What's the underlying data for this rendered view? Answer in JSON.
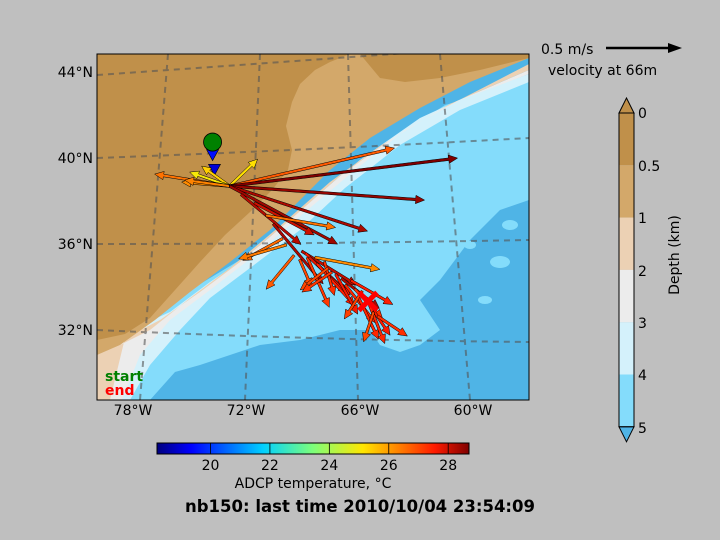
{
  "chart_data": {
    "type": "scatter",
    "subtype": "map-velocity-vectors",
    "title": "nb150: last time 2010/10/04 23:54:09",
    "map": {
      "x_ticks": [
        "78°W",
        "72°W",
        "66°W",
        "60°W"
      ],
      "x_tick_values": [
        -78,
        -72,
        -66,
        -60
      ],
      "y_ticks": [
        "44°N",
        "40°N",
        "36°N",
        "32°N"
      ],
      "y_tick_values": [
        44,
        40,
        36,
        32
      ],
      "lon_range": [
        -80,
        -57.2
      ],
      "lat_range": [
        28.5,
        45
      ],
      "grid": true,
      "start_label": "start",
      "end_label": "end",
      "start_color": "#008000",
      "end_color": "#ff0000",
      "start_point": [
        -73.9,
        40.8
      ],
      "end_point": [
        -65.7,
        33.2
      ]
    },
    "scale_arrow": {
      "label": "0.5 m/s",
      "sublabel": "velocity at 66m"
    },
    "depth_colorbar": {
      "label": "Depth (km)",
      "ticks": [
        "0",
        "0.5",
        "1",
        "2",
        "3",
        "4",
        "5"
      ],
      "colors": [
        "#c0904a",
        "#d3a86a",
        "#ecd1b4",
        "#ececec",
        "#d4f1fb",
        "#84dcfb",
        "#4fb4e6"
      ]
    },
    "temperature_colorbar": {
      "label": "ADCP temperature, °C",
      "ticks": [
        "20",
        "22",
        "24",
        "26",
        "28"
      ],
      "tick_values": [
        20,
        22,
        24,
        26,
        28
      ],
      "range": [
        18.2,
        28.7
      ]
    },
    "track_points": [
      {
        "lon": -73.9,
        "lat": 40.8,
        "temp": 20.0
      },
      {
        "lon": -73.9,
        "lat": 40.2,
        "temp": 19.5
      },
      {
        "lon": -73.8,
        "lat": 39.5,
        "temp": 19.0
      }
    ],
    "vectors": [
      {
        "lat": 38.7,
        "lon": -73.0,
        "dx": -28,
        "dy": -20,
        "temp": 25.4
      },
      {
        "lat": 38.7,
        "lon": -73.0,
        "dx": -40,
        "dy": -14,
        "temp": 25.0
      },
      {
        "lat": 38.7,
        "lon": -73.0,
        "dx": -48,
        "dy": -4,
        "temp": 26.2
      },
      {
        "lat": 38.7,
        "lon": -73.0,
        "dx": -75,
        "dy": -12,
        "temp": 26.5
      },
      {
        "lat": 38.7,
        "lon": -73.0,
        "dx": -45,
        "dy": -6,
        "temp": 26.3
      },
      {
        "lat": 38.7,
        "lon": -73.0,
        "dx": 28,
        "dy": -27,
        "temp": 25.2
      },
      {
        "lat": 38.7,
        "lon": -73.0,
        "dx": 165,
        "dy": -38,
        "temp": 26.8
      },
      {
        "lat": 38.7,
        "lon": -73.0,
        "dx": 228,
        "dy": -28,
        "temp": 28.7
      },
      {
        "lat": 38.7,
        "lon": -73.0,
        "dx": 195,
        "dy": 14,
        "temp": 28.5
      },
      {
        "lat": 38.7,
        "lon": -73.0,
        "dx": 138,
        "dy": 45,
        "temp": 28.3
      },
      {
        "lat": 38.7,
        "lon": -73.0,
        "dx": 108,
        "dy": 58,
        "temp": 28.4
      },
      {
        "lat": 38.3,
        "lon": -72.4,
        "dx": 60,
        "dy": 50,
        "temp": 28.2
      },
      {
        "lat": 37.9,
        "lon": -71.7,
        "dx": 60,
        "dy": 32,
        "temp": 28.0
      },
      {
        "lat": 37.3,
        "lon": -71.1,
        "dx": 70,
        "dy": 12,
        "temp": 26.5
      },
      {
        "lat": 36.9,
        "lon": -70.7,
        "dx": 50,
        "dy": 60,
        "temp": 28.3
      },
      {
        "lat": 36.2,
        "lon": -70.2,
        "dx": -40,
        "dy": 22,
        "temp": 26.6
      },
      {
        "lat": 35.9,
        "lon": -70.0,
        "dx": -48,
        "dy": 14,
        "temp": 26.4
      },
      {
        "lat": 35.4,
        "lon": -69.6,
        "dx": -28,
        "dy": 34,
        "temp": 26.8
      },
      {
        "lat": 35.2,
        "lon": -69.3,
        "dx": 12,
        "dy": 28,
        "temp": 27.0
      },
      {
        "lat": 35.6,
        "lon": -69.2,
        "dx": 55,
        "dy": 34,
        "temp": 28.1
      },
      {
        "lat": 35.5,
        "lon": -69.0,
        "dx": 45,
        "dy": 42,
        "temp": 27.6
      },
      {
        "lat": 35.3,
        "lon": -68.9,
        "dx": 22,
        "dy": 50,
        "temp": 27.2
      },
      {
        "lat": 35.3,
        "lon": -68.8,
        "dx": 38,
        "dy": 36,
        "temp": 27.8
      },
      {
        "lat": 35.0,
        "lon": -68.4,
        "dx": 38,
        "dy": 42,
        "temp": 27.5
      },
      {
        "lat": 35.3,
        "lon": -68.5,
        "dx": 65,
        "dy": 12,
        "temp": 26.2
      },
      {
        "lat": 35.1,
        "lon": -68.0,
        "dx": 10,
        "dy": 34,
        "temp": 27.3
      },
      {
        "lat": 34.8,
        "lon": -67.8,
        "dx": -28,
        "dy": 22,
        "temp": 27.0
      },
      {
        "lat": 34.6,
        "lon": -67.6,
        "dx": -30,
        "dy": 20,
        "temp": 27.2
      },
      {
        "lat": 34.5,
        "lon": -67.4,
        "dx": 22,
        "dy": 40,
        "temp": 27.6
      },
      {
        "lat": 34.3,
        "lon": -67.1,
        "dx": 38,
        "dy": 30,
        "temp": 28.3
      },
      {
        "lat": 34.0,
        "lon": -66.9,
        "dx": 30,
        "dy": 38,
        "temp": 27.4
      },
      {
        "lat": 34.2,
        "lon": -66.6,
        "dx": 42,
        "dy": 24,
        "temp": 27.5
      },
      {
        "lat": 33.8,
        "lon": -66.4,
        "dx": 28,
        "dy": 30,
        "temp": 27.3
      },
      {
        "lat": 33.4,
        "lon": -66.2,
        "dx": 20,
        "dy": 42,
        "temp": 27.4
      },
      {
        "lat": 33.7,
        "lon": -66.0,
        "dx": -18,
        "dy": 28,
        "temp": 27.1
      },
      {
        "lat": 33.3,
        "lon": -65.8,
        "dx": 24,
        "dy": 36,
        "temp": 27.6
      },
      {
        "lat": 33.0,
        "lon": -65.6,
        "dx": 15,
        "dy": 38,
        "temp": 27.4
      },
      {
        "lat": 32.7,
        "lon": -65.4,
        "dx": -10,
        "dy": 30,
        "temp": 27.0
      },
      {
        "lat": 32.5,
        "lon": -65.2,
        "dx": 30,
        "dy": 20,
        "temp": 27.3
      }
    ]
  }
}
